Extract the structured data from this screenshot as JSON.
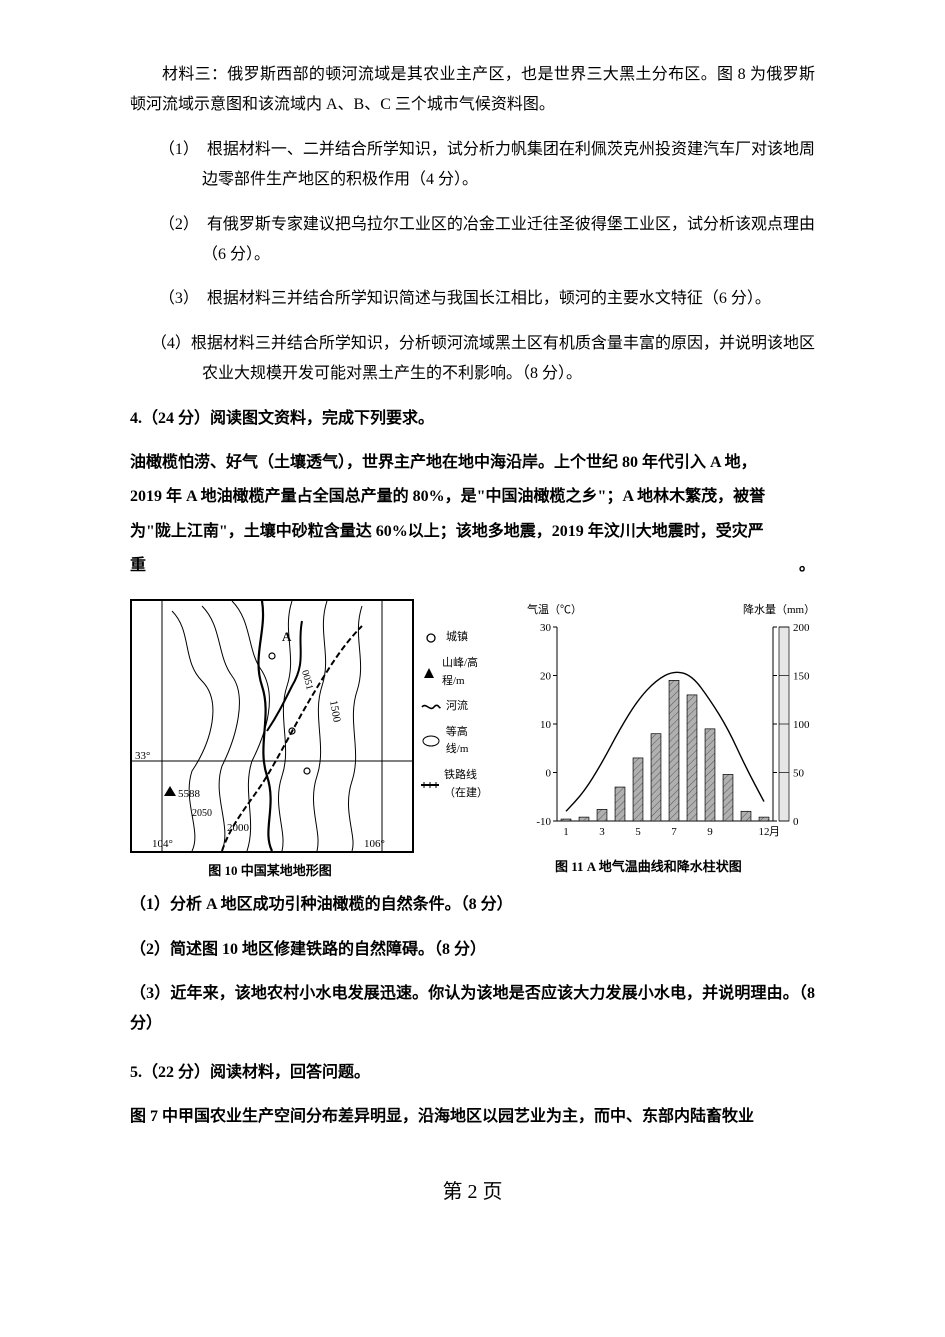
{
  "material3": "材料三：俄罗斯西部的顿河流域是其农业主产区，也是世界三大黑土分布区。图 8 为俄罗斯顿河流域示意图和该流域内 A、B、C 三个城市气候资料图。",
  "q1": "（1）　根据材料一、二并结合所学知识，试分析力帆集团在利佩茨克州投资建汽车厂对该地周边零部件生产地区的积极作用（4 分）。",
  "q2": "（2）　有俄罗斯专家建议把乌拉尔工业区的冶金工业迁往圣彼得堡工业区，试分析该观点理由（6 分）。",
  "q3": "（3）　根据材料三并结合所学知识简述与我国长江相比，顿河的主要水文特征（6 分）。",
  "q4": "（4）根据材料三并结合所学知识，分析顿河流域黑土区有机质含量丰富的原因，并说明该地区农业大规模开发可能对黑土产生的不利影响。（8 分）。",
  "p4": {
    "head": "4.（24 分）阅读图文资料，完成下列要求。",
    "l1": "油橄榄怕涝、好气（土壤透气），世界主产地在地中海沿岸。上个世纪 80 年代引入 A 地，",
    "l2": "2019 年 A 地油橄榄产量占全国总产量的 80%，是\"中国油橄榄之乡\"；A 地林木繁茂，被誉",
    "l3": "为\"陇上江南\"，土壤中砂粒含量达 60%以上；该地多地震，2019 年汶川大地震时，受灾严",
    "l4": "重",
    "l4_end": "。"
  },
  "fig10": {
    "caption": "图 10  中国某地地形图",
    "legend": {
      "town": "城镇",
      "peak": "山峰/高程/m",
      "river": "河流",
      "contour": "等高线/m",
      "rail": "铁路线（在建）"
    },
    "labels": {
      "y33": "33°",
      "x104": "104°",
      "x106": "106°",
      "h5588": "5588",
      "h0051": "0051",
      "c2050": "2050",
      "c2000": "2000",
      "c1500": "1500",
      "A": "A"
    },
    "style": {
      "stroke": "#000000",
      "bg": "#ffffff",
      "line_w": 1,
      "thick_w": 1.6
    }
  },
  "fig11": {
    "caption": "图 11   A 地气温曲线和降水柱状图",
    "y_left_label": "气温（℃）",
    "y_right_label": "降水量（mm）",
    "x_unit": "月",
    "x_ticks": [
      "1",
      "3",
      "5",
      "7",
      "9",
      "12"
    ],
    "temp_axis": {
      "min": -10,
      "max": 30,
      "step": 10
    },
    "precip_axis": {
      "min": 0,
      "max": 200,
      "step": 50
    },
    "precip_mm": [
      2,
      4,
      12,
      35,
      65,
      90,
      145,
      130,
      95,
      48,
      10,
      4
    ],
    "temp_c": [
      -8,
      -4,
      2,
      9,
      15,
      19,
      21,
      20,
      15,
      9,
      1,
      -6
    ],
    "colors": {
      "axis": "#000000",
      "bar_fill": "#b0b0b0",
      "bar_hatch": "#555555",
      "temp_line": "#000000",
      "bg": "#ffffff",
      "label": "#000000"
    },
    "font_pt": 11,
    "bar_width_ratio": 0.55,
    "line_w": 1.4
  },
  "p4q": {
    "q1": "（1）分析 A 地区成功引种油橄榄的自然条件。（8 分）",
    "q2": "（2）简述图 10 地区修建铁路的自然障碍。（8 分）",
    "q3": "（3）近年来，该地农村小水电发展迅速。你认为该地是否应该大力发展小水电，并说明理由。（8 分）"
  },
  "p5": {
    "head": "5.（22 分）阅读材料，回答问题。",
    "l1": "图 7 中甲国农业生产空间分布差异明显，沿海地区以园艺业为主，而中、东部内陆畜牧业"
  },
  "footer": "第 2 页"
}
